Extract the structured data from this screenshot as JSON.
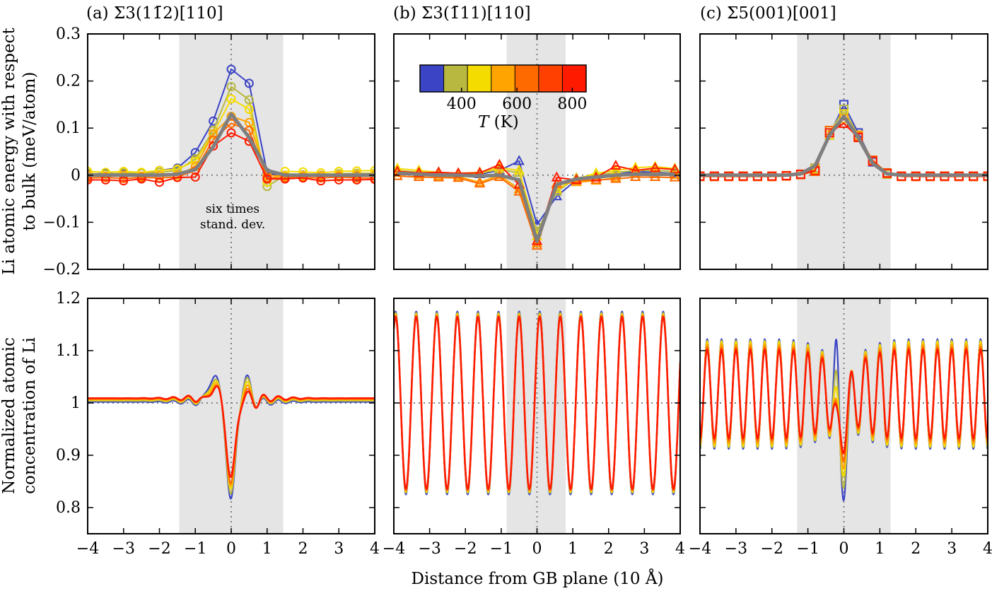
{
  "figure": {
    "xlabel": "Distance from GB plane (10 Å)",
    "ylabel_top_line1": "Li atomic energy with respect",
    "ylabel_top_line2": "to bulk (meV/atom)",
    "ylabel_bottom_line1": "Normalized atomic",
    "ylabel_bottom_line2": "concentration of Li"
  },
  "colorbar": {
    "label_italic": "T",
    "label_rest": " (K)",
    "ticks": [
      "400",
      "600",
      "800"
    ],
    "tick_values": [
      400,
      600,
      800
    ],
    "range": [
      250,
      850
    ],
    "colors": [
      "#3b44c4",
      "#b8b840",
      "#f5dc00",
      "#ffa400",
      "#ff6a00",
      "#ff4000",
      "#ff1a00"
    ]
  },
  "chart_data": [
    {
      "id": "a-energy",
      "type": "line",
      "title": "(a) Σ3(11̄2)[110]",
      "xlim": [
        -4,
        4
      ],
      "ylim": [
        -0.2,
        0.3
      ],
      "xticks": [
        -4,
        -3,
        -2,
        -1,
        0,
        1,
        2,
        3,
        4
      ],
      "yticks": [
        -0.2,
        -0.1,
        0,
        0.1,
        0.2,
        0.3
      ],
      "ytick_labels": [
        "−0.2",
        "−0.1",
        "0",
        "0.1",
        "0.2",
        "0.3"
      ],
      "shade": [
        -1.45,
        1.45
      ],
      "annotation": [
        "six times",
        "stand. dev."
      ],
      "marker": "circle",
      "x": [
        -4,
        -3.5,
        -3,
        -2.5,
        -2,
        -1.5,
        -1,
        -0.5,
        0,
        0.5,
        1,
        1.5,
        2,
        2.5,
        3,
        3.5,
        4
      ],
      "series": [
        {
          "color": "#3b44c4",
          "values": [
            0.002,
            0.004,
            0.003,
            0.004,
            0.01,
            0.015,
            0.048,
            0.115,
            0.225,
            0.195,
            0.005,
            -0.005,
            0.0,
            -0.002,
            -0.001,
            -0.003,
            0.002
          ]
        },
        {
          "color": "#b8b840",
          "values": [
            0.004,
            0.002,
            0.005,
            0.004,
            0.006,
            0.01,
            0.035,
            0.095,
            0.188,
            0.16,
            -0.024,
            0.0,
            0.001,
            0.0,
            0.003,
            0.004,
            0.004
          ]
        },
        {
          "color": "#f5dc00",
          "values": [
            0.008,
            0.006,
            0.008,
            0.006,
            0.01,
            0.013,
            0.03,
            0.088,
            0.162,
            0.14,
            -0.015,
            0.008,
            0.007,
            0.005,
            0.008,
            0.009,
            0.01
          ]
        },
        {
          "color": "#ffa400",
          "values": [
            0.0,
            -0.003,
            0.0,
            -0.002,
            -0.001,
            0.0,
            0.018,
            0.088,
            0.125,
            0.112,
            0.0,
            -0.003,
            -0.002,
            -0.001,
            -0.001,
            0.0,
            0.0
          ]
        },
        {
          "color": "#ff6a00",
          "values": [
            -0.006,
            -0.005,
            -0.007,
            -0.005,
            -0.006,
            -0.004,
            0.01,
            0.075,
            0.11,
            0.095,
            -0.005,
            -0.006,
            -0.005,
            -0.006,
            -0.004,
            -0.006,
            -0.006
          ]
        },
        {
          "color": "#ff1a00",
          "values": [
            -0.01,
            -0.01,
            -0.012,
            -0.008,
            -0.015,
            -0.005,
            -0.004,
            0.062,
            0.09,
            0.072,
            -0.008,
            -0.008,
            -0.006,
            -0.012,
            -0.01,
            -0.01,
            -0.009
          ]
        },
        {
          "color": "#7f7f7f",
          "thick": true,
          "values": [
            0.0,
            0.0,
            0.0,
            0.0,
            0.0,
            0.002,
            0.012,
            0.06,
            0.13,
            0.08,
            0.01,
            0.0,
            0.0,
            0.0,
            0.0,
            0.0,
            0.0
          ]
        }
      ]
    },
    {
      "id": "b-energy",
      "type": "line",
      "title": "(b) Σ3(1̄11)[110]",
      "xlim": [
        -4,
        4
      ],
      "ylim": [
        -0.2,
        0.3
      ],
      "xticks": [
        -4,
        -3,
        -2,
        -1,
        0,
        1,
        2,
        3,
        4
      ],
      "yticks": [
        -0.2,
        -0.1,
        0,
        0.1,
        0.2,
        0.3
      ],
      "shade": [
        -0.85,
        0.8
      ],
      "marker": "triangle",
      "x": [
        -3.9,
        -3.3,
        -2.75,
        -2.2,
        -1.6,
        -1.05,
        -0.5,
        0,
        0.55,
        1.1,
        1.65,
        2.2,
        2.75,
        3.3,
        3.85
      ],
      "series": [
        {
          "color": "#3b44c4",
          "values": [
            0.006,
            0.004,
            0.002,
            0.003,
            0.002,
            0.01,
            0.03,
            -0.105,
            -0.045,
            -0.01,
            -0.005,
            0.002,
            0.008,
            0.006,
            0.004
          ]
        },
        {
          "color": "#b8b840",
          "values": [
            0.01,
            0.006,
            0.004,
            0.002,
            0.004,
            0.012,
            0.005,
            -0.12,
            -0.035,
            -0.006,
            0.0,
            0.006,
            0.01,
            0.01,
            0.008
          ]
        },
        {
          "color": "#f5dc00",
          "values": [
            0.014,
            0.01,
            0.006,
            0.004,
            0.006,
            0.016,
            0.01,
            -0.13,
            -0.03,
            -0.008,
            0.004,
            0.01,
            0.016,
            0.018,
            0.014
          ]
        },
        {
          "color": "#ffa400",
          "values": [
            0.005,
            0.0,
            -0.002,
            -0.003,
            -0.015,
            0.0,
            -0.03,
            -0.145,
            -0.02,
            -0.015,
            -0.012,
            -0.005,
            0.005,
            0.002,
            0.0
          ]
        },
        {
          "color": "#ff6a00",
          "values": [
            -0.002,
            -0.004,
            -0.005,
            -0.006,
            -0.018,
            -0.004,
            -0.035,
            -0.15,
            -0.018,
            -0.012,
            -0.01,
            -0.008,
            -0.004,
            -0.004,
            -0.005
          ]
        },
        {
          "color": "#ff1a00",
          "values": [
            0.008,
            0.005,
            0.006,
            0.004,
            0.005,
            0.022,
            -0.02,
            -0.14,
            -0.005,
            -0.01,
            -0.005,
            0.02,
            0.01,
            0.015,
            0.012
          ]
        },
        {
          "color": "#7f7f7f",
          "thick": true,
          "values": [
            0.004,
            0.002,
            0.0,
            0.0,
            -0.002,
            0.0,
            -0.01,
            -0.14,
            -0.02,
            -0.008,
            -0.004,
            0.0,
            0.002,
            0.002,
            0.002
          ]
        }
      ]
    },
    {
      "id": "c-energy",
      "type": "line",
      "title": "(c) Σ5(001)[001]",
      "xlim": [
        -4,
        4
      ],
      "ylim": [
        -0.2,
        0.3
      ],
      "xticks": [
        -4,
        -3,
        -2,
        -1,
        0,
        1,
        2,
        3,
        4
      ],
      "yticks": [
        -0.2,
        -0.1,
        0,
        0.1,
        0.2,
        0.3
      ],
      "shade": [
        -1.3,
        1.3
      ],
      "marker": "square",
      "x": [
        -4,
        -3.6,
        -3.2,
        -2.8,
        -2.4,
        -2,
        -1.6,
        -1.2,
        -0.8,
        -0.4,
        0,
        0.4,
        0.8,
        1.2,
        1.6,
        2,
        2.4,
        2.8,
        3.2,
        3.6,
        4
      ],
      "series": [
        {
          "color": "#3b44c4",
          "values": [
            -0.002,
            -0.002,
            -0.002,
            -0.002,
            -0.002,
            -0.002,
            -0.001,
            0.002,
            0.015,
            0.085,
            0.15,
            0.09,
            0.028,
            0.002,
            -0.002,
            -0.002,
            -0.002,
            -0.002,
            -0.002,
            -0.002,
            -0.002
          ]
        },
        {
          "color": "#b8b840",
          "values": [
            -0.002,
            -0.002,
            -0.002,
            -0.002,
            -0.002,
            -0.002,
            -0.001,
            0.002,
            0.015,
            0.09,
            0.14,
            0.085,
            0.03,
            0.002,
            -0.002,
            -0.002,
            -0.002,
            -0.002,
            -0.002,
            -0.002,
            -0.002
          ]
        },
        {
          "color": "#f5dc00",
          "values": [
            -0.002,
            -0.002,
            -0.002,
            -0.002,
            -0.002,
            -0.002,
            -0.001,
            0.002,
            0.012,
            0.085,
            0.13,
            0.08,
            0.03,
            0.003,
            -0.002,
            -0.002,
            -0.002,
            -0.002,
            -0.002,
            -0.002,
            -0.002
          ]
        },
        {
          "color": "#ffa400",
          "values": [
            -0.002,
            -0.002,
            -0.002,
            -0.002,
            -0.002,
            -0.002,
            -0.001,
            0.002,
            0.01,
            0.095,
            0.12,
            0.085,
            0.03,
            0.004,
            -0.002,
            -0.002,
            -0.002,
            -0.002,
            -0.002,
            -0.002,
            -0.002
          ]
        },
        {
          "color": "#ff6a00",
          "values": [
            -0.003,
            -0.003,
            -0.003,
            -0.003,
            -0.003,
            -0.003,
            -0.002,
            0.001,
            0.008,
            0.095,
            0.11,
            0.082,
            0.032,
            0.005,
            -0.003,
            -0.003,
            -0.003,
            -0.003,
            -0.003,
            -0.003,
            -0.003
          ]
        },
        {
          "color": "#ff1a00",
          "values": [
            -0.002,
            -0.002,
            -0.002,
            -0.002,
            -0.002,
            -0.002,
            -0.001,
            0.002,
            0.01,
            0.09,
            0.11,
            0.08,
            0.03,
            0.004,
            -0.002,
            -0.002,
            -0.002,
            -0.002,
            -0.002,
            -0.002,
            -0.002
          ]
        },
        {
          "color": "#7f7f7f",
          "thick": true,
          "values": [
            0.0,
            0.0,
            0.0,
            0.0,
            0.0,
            0.0,
            0.0,
            0.003,
            0.02,
            0.085,
            0.125,
            0.08,
            0.025,
            0.003,
            0.0,
            0.0,
            0.0,
            0.0,
            0.0,
            0.0,
            0.0
          ]
        }
      ]
    },
    {
      "id": "a-conc",
      "type": "line",
      "xlim": [
        -4,
        4
      ],
      "ylim": [
        0.75,
        1.2
      ],
      "xticks": [
        -4,
        -3,
        -2,
        -1,
        0,
        1,
        2,
        3,
        4
      ],
      "xtick_labels": [
        "−4",
        "−3",
        "−2",
        "−1",
        "0",
        "1",
        "2",
        "3",
        "4"
      ],
      "yticks": [
        0.8,
        0.9,
        1.0,
        1.1,
        1.2
      ],
      "ytick_labels": [
        "0.8",
        "0.9",
        "1",
        "1.1",
        "1.2"
      ],
      "shade": [
        -1.45,
        1.45
      ],
      "profile": "gb-dip",
      "profile_params": {
        "baseline": [
          1.002,
          1.004,
          1.006,
          1.007,
          1.008,
          1.009
        ],
        "dip_min": [
          0.81,
          0.82,
          0.83,
          0.835,
          0.84,
          0.852
        ],
        "peak_left": [
          1.053,
          1.045,
          1.04,
          1.035,
          1.03,
          1.028
        ],
        "peak_right": [
          1.045,
          1.04,
          1.032,
          1.025,
          1.018,
          1.012
        ]
      },
      "series_colors": [
        "#3b44c4",
        "#b8b840",
        "#f5dc00",
        "#ffa400",
        "#ff6a00",
        "#ff1a00"
      ]
    },
    {
      "id": "b-conc",
      "type": "line",
      "xlim": [
        -4,
        4
      ],
      "ylim": [
        0.75,
        1.2
      ],
      "xticks": [
        -4,
        -3,
        -2,
        -1,
        0,
        1,
        2,
        3,
        4
      ],
      "xtick_labels": [
        "−4",
        "−3",
        "−2",
        "−1",
        "0",
        "1",
        "2",
        "3",
        "4"
      ],
      "yticks": [
        0.8,
        0.9,
        1.0,
        1.1,
        1.2
      ],
      "shade": [
        -0.85,
        0.8
      ],
      "profile": "oscillation",
      "profile_params": {
        "period": 0.575,
        "phase_peak": -3.95,
        "mean": 1.0,
        "amp": [
          0.175,
          0.172,
          0.17,
          0.168,
          0.166,
          0.165
        ]
      },
      "series_colors": [
        "#3b44c4",
        "#b8b840",
        "#f5dc00",
        "#ffa400",
        "#ff6a00",
        "#ff1a00"
      ]
    },
    {
      "id": "c-conc",
      "type": "line",
      "xlim": [
        -4,
        4
      ],
      "ylim": [
        0.75,
        1.2
      ],
      "xticks": [
        -4,
        -3,
        -2,
        -1,
        0,
        1,
        2,
        3,
        4
      ],
      "xtick_labels": [
        "−4",
        "−3",
        "−2",
        "−1",
        "0",
        "1",
        "2",
        "3",
        "4"
      ],
      "yticks": [
        0.8,
        0.9,
        1.0,
        1.1,
        1.2
      ],
      "shade": [
        -1.3,
        1.3
      ],
      "profile": "oscillation-gb",
      "profile_params": {
        "period": 0.4,
        "phase_peak": -3.8,
        "mean": 1.017,
        "amp": [
          0.105,
          0.102,
          0.1,
          0.095,
          0.09,
          0.085
        ],
        "center_peak": [
          1.13,
          1.05,
          1.0,
          0.97,
          0.96,
          0.95
        ],
        "center_dip": [
          0.83,
          0.85,
          0.87,
          0.88,
          0.89,
          0.9
        ]
      },
      "series_colors": [
        "#3b44c4",
        "#b8b840",
        "#f5dc00",
        "#ffa400",
        "#ff6a00",
        "#ff1a00"
      ]
    }
  ]
}
